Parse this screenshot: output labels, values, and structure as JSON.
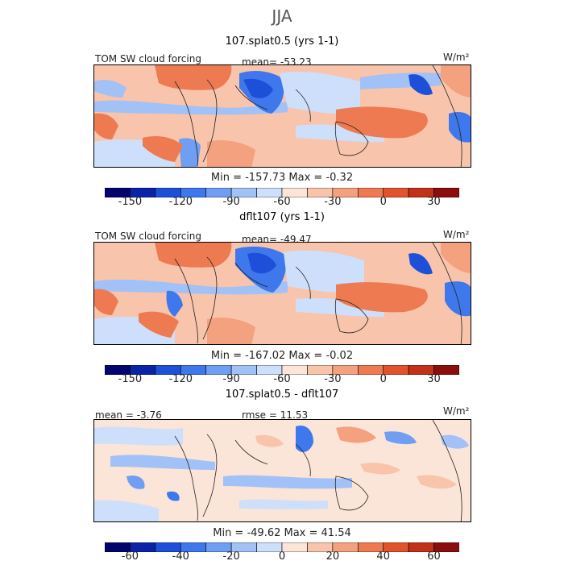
{
  "figure": {
    "season": "JJA",
    "units": "W/m²"
  },
  "panels": [
    {
      "title": "107.splat0.5 (yrs 1-1)",
      "left_label": "TOM SW cloud forcing",
      "center_label": "mean= -53.23",
      "minmax_label": "Min = -157.73 Max = -0.32"
    },
    {
      "title": "dflt107 (yrs 1-1)",
      "left_label": "TOM SW cloud forcing",
      "center_label": "mean= -49.47",
      "minmax_label": "Min = -167.02 Max = -0.02"
    },
    {
      "title": "107.splat0.5 - dflt107",
      "left_label": "mean = -3.76",
      "center_label": "rmse = 11.53",
      "minmax_label": "Min = -49.62 Max = 41.54"
    }
  ],
  "chart_data": [
    {
      "type": "heatmap",
      "title": "107.splat0.5 (yrs 1-1)",
      "variable": "TOM SW cloud forcing",
      "units": "W/m²",
      "mean": -53.23,
      "min": -157.73,
      "max": -0.32,
      "colorbar": {
        "boundaries": [
          -165,
          -150,
          -135,
          -120,
          -105,
          -90,
          -75,
          -60,
          -45,
          -30,
          -15,
          0,
          15,
          30,
          45
        ],
        "tick_labels": [
          "-150",
          "-120",
          "-90",
          "-60",
          "-30",
          "0",
          "30"
        ],
        "tick_values": [
          -150,
          -120,
          -90,
          -60,
          -30,
          0,
          30
        ],
        "colors": [
          "#04046e",
          "#0a23a8",
          "#1e4fd8",
          "#3f78ec",
          "#6f9ef2",
          "#a2c1f6",
          "#cddffa",
          "#fbe4d8",
          "#f8c4ab",
          "#f3a17e",
          "#ed7a51",
          "#e0532b",
          "#c13218",
          "#8c0d0d"
        ]
      }
    },
    {
      "type": "heatmap",
      "title": "dflt107 (yrs 1-1)",
      "variable": "TOM SW cloud forcing",
      "units": "W/m²",
      "mean": -49.47,
      "min": -167.02,
      "max": -0.02,
      "colorbar": {
        "boundaries": [
          -165,
          -150,
          -135,
          -120,
          -105,
          -90,
          -75,
          -60,
          -45,
          -30,
          -15,
          0,
          15,
          30,
          45
        ],
        "tick_labels": [
          "-150",
          "-120",
          "-90",
          "-60",
          "-30",
          "0",
          "30"
        ],
        "tick_values": [
          -150,
          -120,
          -90,
          -60,
          -30,
          0,
          30
        ],
        "colors": [
          "#04046e",
          "#0a23a8",
          "#1e4fd8",
          "#3f78ec",
          "#6f9ef2",
          "#a2c1f6",
          "#cddffa",
          "#fbe4d8",
          "#f8c4ab",
          "#f3a17e",
          "#ed7a51",
          "#e0532b",
          "#c13218",
          "#8c0d0d"
        ]
      }
    },
    {
      "type": "heatmap",
      "title": "107.splat0.5 - dflt107",
      "units": "W/m²",
      "mean": -3.76,
      "rmse": 11.53,
      "min": -49.62,
      "max": 41.54,
      "colorbar": {
        "boundaries": [
          -70,
          -60,
          -50,
          -40,
          -30,
          -20,
          -10,
          0,
          10,
          20,
          30,
          40,
          50,
          60,
          70
        ],
        "tick_labels": [
          "-60",
          "-40",
          "-20",
          "0",
          "20",
          "40",
          "60"
        ],
        "tick_values": [
          -60,
          -40,
          -20,
          0,
          20,
          40,
          60
        ],
        "colors": [
          "#04046e",
          "#0a23a8",
          "#1e4fd8",
          "#3f78ec",
          "#6f9ef2",
          "#a2c1f6",
          "#cddffa",
          "#fbe4d8",
          "#f8c4ab",
          "#f3a17e",
          "#ed7a51",
          "#e0532b",
          "#c13218",
          "#8c0d0d"
        ]
      }
    }
  ]
}
